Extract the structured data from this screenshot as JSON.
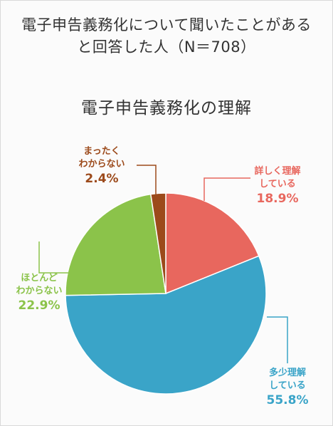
{
  "header": {
    "line1": "電子申告義務化について聞いたことがある",
    "line2": "と回答した人（N＝708）"
  },
  "chart_data": {
    "type": "pie",
    "title": "電子申告義務化の理解",
    "slices": [
      {
        "label_lines": [
          "詳しく理解",
          "している"
        ],
        "value": 18.9,
        "display": "18.9%",
        "color": "#e8675e"
      },
      {
        "label_lines": [
          "多少理解",
          "している"
        ],
        "value": 55.8,
        "display": "55.8%",
        "color": "#3aa4c8"
      },
      {
        "label_lines": [
          "ほとんど",
          "わからない"
        ],
        "value": 22.9,
        "display": "22.9%",
        "color": "#8bc34a"
      },
      {
        "label_lines": [
          "まったく",
          "わからない"
        ],
        "value": 2.4,
        "display": "2.4%",
        "color": "#9c4a1b"
      }
    ],
    "start_angle_deg": 0,
    "direction": "clockwise",
    "legend": "none"
  }
}
